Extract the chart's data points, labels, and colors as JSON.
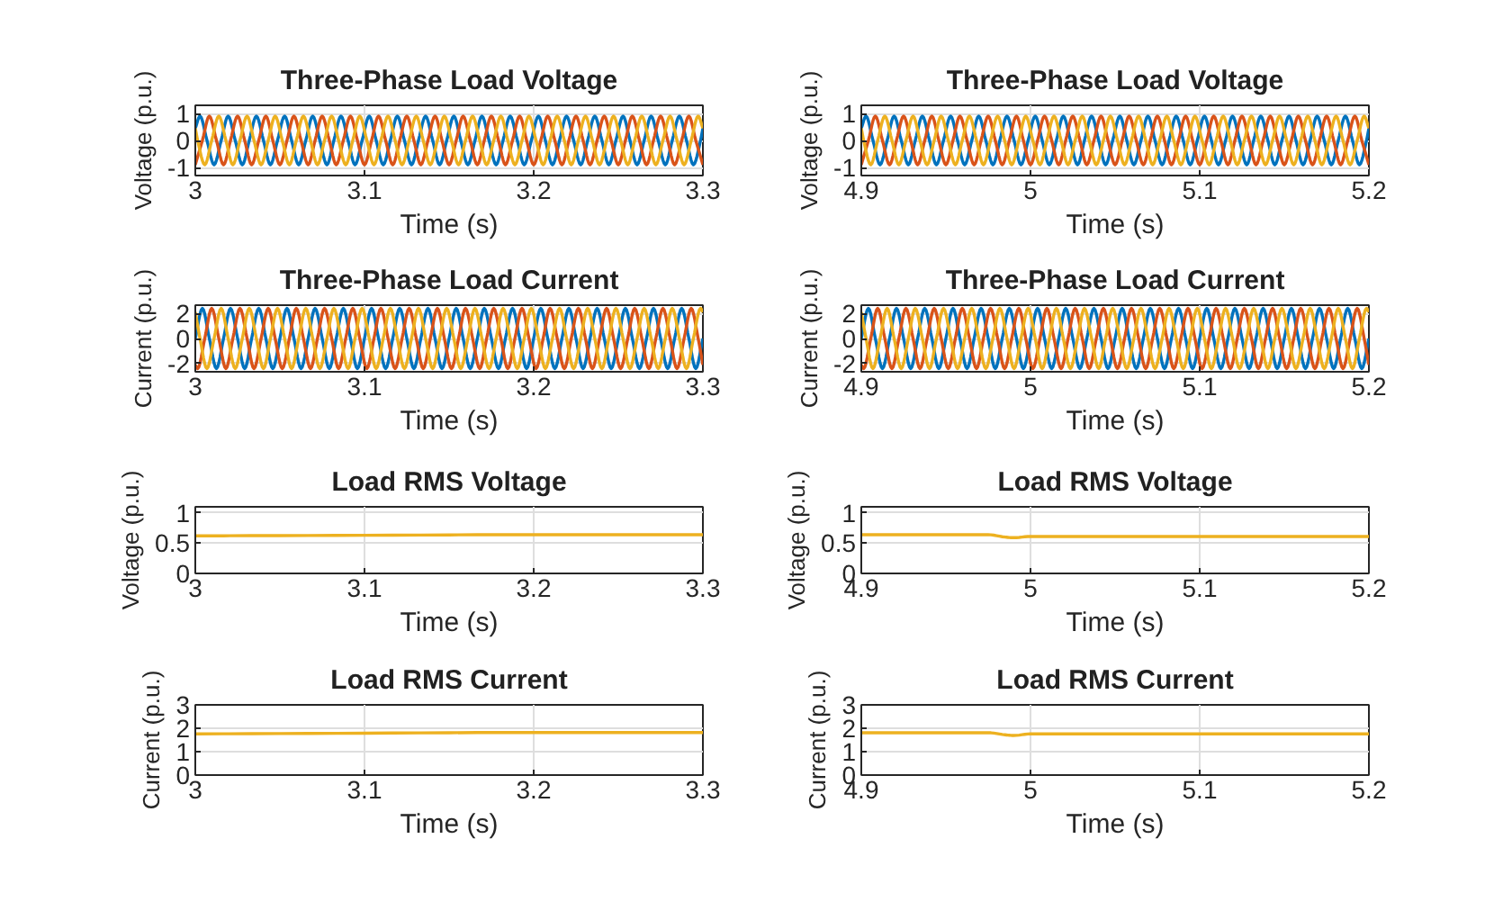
{
  "chart_data": [
    {
      "type": "line",
      "title": "Three-Phase Load Voltage",
      "xlabel": "Time (s)",
      "ylabel": "Voltage (p.u.)",
      "xlim": [
        3,
        3.3
      ],
      "xticks": [
        3,
        3.1,
        3.2,
        3.3
      ],
      "ylim": [
        -1.3,
        1.3
      ],
      "yticks": [
        -1,
        0,
        1
      ],
      "grid": true,
      "series": [
        {
          "color": "#0072bd",
          "x": [
            3,
            3.0028,
            3.0069,
            3.0111,
            3.0153,
            3.0194,
            3.0236,
            3.0278,
            3.0319,
            3.0361,
            3.0403,
            3.0444,
            3.0486,
            3.0528,
            3.0569,
            3.0611,
            3.0653,
            3.0694,
            3.0736,
            3.0778,
            3.0819,
            3.0861,
            3.0903,
            3.0944,
            3.0986,
            3.1028,
            3.1069,
            3.1111,
            3.1153,
            3.1194,
            3.1236,
            3.1278,
            3.1319,
            3.1361,
            3.1403,
            3.1444,
            3.1486,
            3.1528,
            3.1569,
            3.1611,
            3.1653,
            3.1694,
            3.1736,
            3.1778,
            3.1819,
            3.1861,
            3.1903,
            3.1944,
            3.1986,
            3.2028,
            3.2069,
            3.2111,
            3.2153,
            3.2194,
            3.2236,
            3.2278,
            3.2319,
            3.2361,
            3.2403,
            3.2444,
            3.2486,
            3.2528,
            3.2569,
            3.2611,
            3.2653,
            3.2694,
            3.2736,
            3.2778,
            3.2819,
            3.2861,
            3.2903,
            3.2944,
            3.2986,
            3.3
          ],
          "values": [
            0.45,
            0.9,
            0,
            -0.9,
            0,
            0.9,
            0,
            -0.9,
            0,
            0.9,
            0,
            -0.9,
            0,
            0.9,
            0,
            -0.9,
            0,
            0.9,
            0,
            -0.9,
            0,
            0.9,
            0,
            -0.9,
            0,
            0.9,
            0,
            -0.9,
            0,
            0.9,
            0,
            -0.9,
            0,
            0.9,
            0,
            -0.9,
            0,
            0.9,
            0,
            -0.9,
            0,
            0.9,
            0,
            -0.9,
            0,
            0.9,
            0,
            -0.9,
            0,
            0.9,
            0,
            -0.9,
            0,
            0.9,
            0,
            -0.9,
            0,
            0.9,
            0,
            -0.9,
            0,
            0.9,
            0,
            -0.9,
            0,
            0.9,
            0,
            -0.9,
            0,
            0.9,
            0,
            -0.9,
            0,
            0.45
          ]
        },
        {
          "color": "#d95319",
          "x": [
            3,
            3.0042,
            3.0083,
            3.0125,
            3.0167,
            3.0208,
            3.025,
            3.0292,
            3.0333,
            3.0375,
            3.0417,
            3.0458,
            3.05,
            3.0542,
            3.0583,
            3.0625,
            3.0667,
            3.0708,
            3.075,
            3.0792,
            3.0833,
            3.0875,
            3.0917,
            3.0958,
            3.1,
            3.1042,
            3.1083,
            3.1125,
            3.1167,
            3.1208,
            3.125,
            3.1292,
            3.1333,
            3.1375,
            3.1417,
            3.1458,
            3.15,
            3.1542,
            3.1583,
            3.1625,
            3.1667,
            3.1708,
            3.175,
            3.1792,
            3.1833,
            3.1875,
            3.1917,
            3.1958,
            3.2,
            3.2042,
            3.2083,
            3.2125,
            3.2167,
            3.2208,
            3.225,
            3.2292,
            3.2333,
            3.2375,
            3.2417,
            3.2458,
            3.25,
            3.2542,
            3.2583,
            3.2625,
            3.2667,
            3.2708,
            3.275,
            3.2792,
            3.2833,
            3.2875,
            3.2917,
            3.2958,
            3.3
          ],
          "values": [
            -0.9,
            0,
            0.9,
            0,
            -0.9,
            0,
            0.9,
            0,
            -0.9,
            0,
            0.9,
            0,
            -0.9,
            0,
            0.9,
            0,
            -0.9,
            0,
            0.9,
            0,
            -0.9,
            0,
            0.9,
            0,
            -0.9,
            0,
            0.9,
            0,
            -0.9,
            0,
            0.9,
            0,
            -0.9,
            0,
            0.9,
            0,
            -0.9,
            0,
            0.9,
            0,
            -0.9,
            0,
            0.9,
            0,
            -0.9,
            0,
            0.9,
            0,
            -0.9,
            0,
            0.9,
            0,
            -0.9,
            0,
            0.9,
            0,
            -0.9,
            0,
            0.9,
            0,
            -0.9,
            0,
            0.9,
            0,
            -0.9,
            0,
            0.9,
            0,
            -0.9,
            0,
            0.9,
            0,
            -0.9
          ]
        },
        {
          "color": "#edb120",
          "x": [
            3,
            3.0014,
            3.0056,
            3.0097,
            3.0139,
            3.0181,
            3.0222,
            3.0264,
            3.0306,
            3.0347,
            3.0389,
            3.0431,
            3.0472,
            3.0514,
            3.0556,
            3.0597,
            3.0639,
            3.0681,
            3.0722,
            3.0764,
            3.0806,
            3.0847,
            3.0889,
            3.0931,
            3.0972,
            3.1014,
            3.1056,
            3.1097,
            3.1139,
            3.1181,
            3.1222,
            3.1264,
            3.1306,
            3.1347,
            3.1389,
            3.1431,
            3.1472,
            3.1514,
            3.1556,
            3.1597,
            3.1639,
            3.1681,
            3.1722,
            3.1764,
            3.1806,
            3.1847,
            3.1889,
            3.1931,
            3.1972,
            3.2014,
            3.2056,
            3.2097,
            3.2139,
            3.2181,
            3.2222,
            3.2264,
            3.2306,
            3.2347,
            3.2389,
            3.2431,
            3.2472,
            3.2514,
            3.2556,
            3.2597,
            3.2639,
            3.2681,
            3.2722,
            3.2764,
            3.2806,
            3.2847,
            3.2889,
            3.2931,
            3.2972,
            3.3
          ],
          "values": [
            0.45,
            0,
            -0.9,
            0,
            0.9,
            0,
            -0.9,
            0,
            0.9,
            0,
            -0.9,
            0,
            0.9,
            0,
            -0.9,
            0,
            0.9,
            0,
            -0.9,
            0,
            0.9,
            0,
            -0.9,
            0,
            0.9,
            0,
            -0.9,
            0,
            0.9,
            0,
            -0.9,
            0,
            0.9,
            0,
            -0.9,
            0,
            0.9,
            0,
            -0.9,
            0,
            0.9,
            0,
            -0.9,
            0,
            0.9,
            0,
            -0.9,
            0,
            0.9,
            0,
            -0.9,
            0,
            0.9,
            0,
            -0.9,
            0,
            0.9,
            0,
            -0.9,
            0,
            0.9,
            0,
            -0.9,
            0,
            0.9,
            0,
            -0.9,
            0,
            0.9,
            0,
            -0.9,
            0,
            0.9,
            0.45
          ]
        }
      ]
    },
    {
      "type": "line",
      "title": "Three-Phase Load Voltage",
      "xlabel": "Time (s)",
      "ylabel": "Voltage (p.u.)",
      "xlim": [
        4.9,
        5.2
      ],
      "xticks": [
        4.9,
        5,
        5.1,
        5.2
      ],
      "ylim": [
        -1.3,
        1.3
      ],
      "yticks": [
        -1,
        0,
        1
      ],
      "grid": true,
      "series": [
        {
          "color": "#0072bd",
          "x": [
            4.9,
            4.9028,
            4.9069,
            4.9111,
            4.9153,
            4.9194,
            4.9236,
            4.9278,
            4.9319,
            4.9361,
            4.9403,
            4.9444,
            4.9486,
            4.9528,
            4.9569,
            4.9611,
            4.9653,
            4.9694,
            4.9736,
            4.9778,
            4.9819,
            4.9861,
            4.9903,
            4.9944,
            4.9986,
            5.0028,
            5.0069,
            5.0111,
            5.0153,
            5.0194,
            5.0236,
            5.0278,
            5.0319,
            5.0361,
            5.0403,
            5.0444,
            5.0486,
            5.0528,
            5.0569,
            5.0611,
            5.0653,
            5.0694,
            5.0736,
            5.0778,
            5.0819,
            5.0861,
            5.0903,
            5.0944,
            5.0986,
            5.1028,
            5.1069,
            5.1111,
            5.1153,
            5.1194,
            5.1236,
            5.1278,
            5.1319,
            5.1361,
            5.1403,
            5.1444,
            5.1486,
            5.1528,
            5.1569,
            5.1611,
            5.1653,
            5.1694,
            5.1736,
            5.1778,
            5.1819,
            5.1861,
            5.1903,
            5.1944,
            5.1986,
            5.2
          ],
          "values": [
            0.45,
            0.9,
            0,
            -0.9,
            0,
            0.9,
            0,
            -0.9,
            0,
            0.9,
            0,
            -0.9,
            0,
            0.9,
            0,
            -0.9,
            0,
            0.9,
            0,
            -0.9,
            0,
            0.9,
            0,
            -0.9,
            0,
            0.9,
            0,
            -0.9,
            0,
            0.9,
            0,
            -0.9,
            0,
            0.9,
            0,
            -0.9,
            0,
            0.9,
            0,
            -0.9,
            0,
            0.9,
            0,
            -0.9,
            0,
            0.9,
            0,
            -0.9,
            0,
            0.9,
            0,
            -0.9,
            0,
            0.9,
            0,
            -0.9,
            0,
            0.9,
            0,
            -0.9,
            0,
            0.9,
            0,
            -0.9,
            0,
            0.9,
            0,
            -0.9,
            0,
            0.9,
            0,
            -0.9,
            0,
            0.45
          ]
        },
        {
          "color": "#d95319",
          "x": [
            4.9,
            4.9042,
            4.9083,
            4.9125,
            4.9167,
            4.9208,
            4.925,
            4.9292,
            4.9333,
            4.9375,
            4.9417,
            4.9458,
            4.95,
            4.9542,
            4.9583,
            4.9625,
            4.9667,
            4.9708,
            4.975,
            4.9792,
            4.9833,
            4.9875,
            4.9917,
            4.9958,
            5,
            5.0042,
            5.0083,
            5.0125,
            5.0167,
            5.0208,
            5.025,
            5.0292,
            5.0333,
            5.0375,
            5.0417,
            5.0458,
            5.05,
            5.0542,
            5.0583,
            5.0625,
            5.0667,
            5.0708,
            5.075,
            5.0792,
            5.0833,
            5.0875,
            5.0917,
            5.0958,
            5.1,
            5.1042,
            5.1083,
            5.1125,
            5.1167,
            5.1208,
            5.125,
            5.1292,
            5.1333,
            5.1375,
            5.1417,
            5.1458,
            5.15,
            5.1542,
            5.1583,
            5.1625,
            5.1667,
            5.1708,
            5.175,
            5.1792,
            5.1833,
            5.1875,
            5.1917,
            5.1958,
            5.2
          ],
          "values": [
            -0.9,
            0,
            0.9,
            0,
            -0.9,
            0,
            0.9,
            0,
            -0.9,
            0,
            0.9,
            0,
            -0.9,
            0,
            0.9,
            0,
            -0.9,
            0,
            0.9,
            0,
            -0.9,
            0,
            0.9,
            0,
            -0.9,
            0,
            0.9,
            0,
            -0.9,
            0,
            0.9,
            0,
            -0.9,
            0,
            0.9,
            0,
            -0.9,
            0,
            0.9,
            0,
            -0.9,
            0,
            0.9,
            0,
            -0.9,
            0,
            0.9,
            0,
            -0.9,
            0,
            0.9,
            0,
            -0.9,
            0,
            0.9,
            0,
            -0.9,
            0,
            0.9,
            0,
            -0.9,
            0,
            0.9,
            0,
            -0.9,
            0,
            0.9,
            0,
            -0.9,
            0,
            0.9,
            0,
            -0.9
          ]
        },
        {
          "color": "#edb120",
          "x": [
            4.9,
            4.9014,
            4.9056,
            4.9097,
            4.9139,
            4.9181,
            4.9222,
            4.9264,
            4.9306,
            4.9347,
            4.9389,
            4.9431,
            4.9472,
            4.9514,
            4.9556,
            4.9597,
            4.9639,
            4.9681,
            4.9722,
            4.9764,
            4.9806,
            4.9847,
            4.9889,
            4.9931,
            4.9972,
            5.0014,
            5.0056,
            5.0097,
            5.0139,
            5.0181,
            5.0222,
            5.0264,
            5.0306,
            5.0347,
            5.0389,
            5.0431,
            5.0472,
            5.0514,
            5.0556,
            5.0597,
            5.0639,
            5.0681,
            5.0722,
            5.0764,
            5.0806,
            5.0847,
            5.0889,
            5.0931,
            5.0972,
            5.1014,
            5.1056,
            5.1097,
            5.1139,
            5.1181,
            5.1222,
            5.1264,
            5.1306,
            5.1347,
            5.1389,
            5.1431,
            5.1472,
            5.1514,
            5.1556,
            5.1597,
            5.1639,
            5.1681,
            5.1722,
            5.1764,
            5.1806,
            5.1847,
            5.1889,
            5.1931,
            5.1972,
            5.2
          ],
          "values": [
            0.45,
            0,
            -0.9,
            0,
            0.9,
            0,
            -0.9,
            0,
            0.9,
            0,
            -0.9,
            0,
            0.9,
            0,
            -0.9,
            0,
            0.9,
            0,
            -0.9,
            0,
            0.9,
            0,
            -0.9,
            0,
            0.9,
            0,
            -0.9,
            0,
            0.9,
            0,
            -0.9,
            0,
            0.9,
            0,
            -0.9,
            0,
            0.9,
            0,
            -0.9,
            0,
            0.9,
            0,
            -0.9,
            0,
            0.9,
            0,
            -0.9,
            0,
            0.9,
            0,
            -0.9,
            0,
            0.9,
            0,
            -0.9,
            0,
            0.9,
            0,
            -0.9,
            0,
            0.9,
            0,
            -0.9,
            0,
            0.9,
            0,
            -0.9,
            0,
            0.9,
            0,
            -0.9,
            0,
            0.9,
            0.45
          ]
        }
      ]
    },
    {
      "type": "line",
      "title": "Three-Phase Load Current",
      "xlabel": "Time (s)",
      "ylabel": "Current (p.u.)",
      "xlim": [
        3,
        3.3
      ],
      "xticks": [
        3,
        3.1,
        3.2,
        3.3
      ],
      "ylim": [
        -2.65,
        2.65
      ],
      "yticks": [
        -2,
        0,
        2
      ],
      "grid": true,
      "series": [
        {
          "color": "#0072bd",
          "x": [
            3,
            3.0042,
            3.0083,
            3.0125,
            3.0167,
            3.0208,
            3.025,
            3.0292,
            3.0333,
            3.0375,
            3.0417,
            3.0458,
            3.05,
            3.0542,
            3.0583,
            3.0625,
            3.0667,
            3.0708,
            3.075,
            3.0792,
            3.0833,
            3.0875,
            3.0917,
            3.0958,
            3.1,
            3.1042,
            3.1083,
            3.1125,
            3.1167,
            3.1208,
            3.125,
            3.1292,
            3.1333,
            3.1375,
            3.1417,
            3.1458,
            3.15,
            3.1542,
            3.1583,
            3.1625,
            3.1667,
            3.1708,
            3.175,
            3.1792,
            3.1833,
            3.1875,
            3.1917,
            3.1958,
            3.2,
            3.2042,
            3.2083,
            3.2125,
            3.2167,
            3.2208,
            3.225,
            3.2292,
            3.2333,
            3.2375,
            3.2417,
            3.2458,
            3.25,
            3.2542,
            3.2583,
            3.2625,
            3.2667,
            3.2708,
            3.275,
            3.2792,
            3.2833,
            3.2875,
            3.2917,
            3.2958,
            3.3
          ],
          "values": [
            0,
            2.4,
            0,
            -2.4,
            0,
            2.4,
            0,
            -2.4,
            0,
            2.4,
            0,
            -2.4,
            0,
            2.4,
            0,
            -2.4,
            0,
            2.4,
            0,
            -2.4,
            0,
            2.4,
            0,
            -2.4,
            0,
            2.4,
            0,
            -2.4,
            0,
            2.4,
            0,
            -2.4,
            0,
            2.4,
            0,
            -2.4,
            0,
            2.4,
            0,
            -2.4,
            0,
            2.4,
            0,
            -2.4,
            0,
            2.4,
            0,
            -2.4,
            0,
            2.4,
            0,
            -2.4,
            0,
            2.4,
            0,
            -2.4,
            0,
            2.4,
            0,
            -2.4,
            0,
            2.4,
            0,
            -2.4,
            0,
            2.4,
            0,
            -2.4,
            0,
            2.4,
            0,
            -2.4,
            0
          ]
        },
        {
          "color": "#d95319",
          "x": [
            3,
            3.0014,
            3.0056,
            3.0097,
            3.0139,
            3.0181,
            3.0222,
            3.0264,
            3.0306,
            3.0347,
            3.0389,
            3.0431,
            3.0472,
            3.0514,
            3.0556,
            3.0597,
            3.0639,
            3.0681,
            3.0722,
            3.0764,
            3.0806,
            3.0847,
            3.0889,
            3.0931,
            3.0972,
            3.1014,
            3.1056,
            3.1097,
            3.1139,
            3.1181,
            3.1222,
            3.1264,
            3.1306,
            3.1347,
            3.1389,
            3.1431,
            3.1472,
            3.1514,
            3.1556,
            3.1597,
            3.1639,
            3.1681,
            3.1722,
            3.1764,
            3.1806,
            3.1847,
            3.1889,
            3.1931,
            3.1972,
            3.2014,
            3.2056,
            3.2097,
            3.2139,
            3.2181,
            3.2222,
            3.2264,
            3.2306,
            3.2347,
            3.2389,
            3.2431,
            3.2472,
            3.2514,
            3.2556,
            3.2597,
            3.2639,
            3.2681,
            3.2722,
            3.2764,
            3.2806,
            3.2847,
            3.2889,
            3.2931,
            3.2972,
            3.3
          ],
          "values": [
            -2.1,
            -2.4,
            0,
            2.4,
            0,
            -2.4,
            0,
            2.4,
            0,
            -2.4,
            0,
            2.4,
            0,
            -2.4,
            0,
            2.4,
            0,
            -2.4,
            0,
            2.4,
            0,
            -2.4,
            0,
            2.4,
            0,
            -2.4,
            0,
            2.4,
            0,
            -2.4,
            0,
            2.4,
            0,
            -2.4,
            0,
            2.4,
            0,
            -2.4,
            0,
            2.4,
            0,
            -2.4,
            0,
            2.4,
            0,
            -2.4,
            0,
            2.4,
            0,
            -2.4,
            0,
            2.4,
            0,
            -2.4,
            0,
            2.4,
            0,
            -2.4,
            0,
            2.4,
            0,
            -2.4,
            0,
            2.4,
            0,
            -2.4,
            0,
            2.4,
            0,
            -2.4,
            0,
            2.4,
            0,
            -2.1
          ]
        },
        {
          "color": "#edb120",
          "x": [
            3,
            3.0028,
            3.0069,
            3.0111,
            3.0153,
            3.0194,
            3.0236,
            3.0278,
            3.0319,
            3.0361,
            3.0403,
            3.0444,
            3.0486,
            3.0528,
            3.0569,
            3.0611,
            3.0653,
            3.0694,
            3.0736,
            3.0778,
            3.0819,
            3.0861,
            3.0903,
            3.0944,
            3.0986,
            3.1028,
            3.1069,
            3.1111,
            3.1153,
            3.1194,
            3.1236,
            3.1278,
            3.1319,
            3.1361,
            3.1403,
            3.1444,
            3.1486,
            3.1528,
            3.1569,
            3.1611,
            3.1653,
            3.1694,
            3.1736,
            3.1778,
            3.1819,
            3.1861,
            3.1903,
            3.1944,
            3.1986,
            3.2028,
            3.2069,
            3.2111,
            3.2153,
            3.2194,
            3.2236,
            3.2278,
            3.2319,
            3.2361,
            3.2403,
            3.2444,
            3.2486,
            3.2528,
            3.2569,
            3.2611,
            3.2653,
            3.2694,
            3.2736,
            3.2778,
            3.2819,
            3.2861,
            3.2903,
            3.2944,
            3.2986,
            3.3
          ],
          "values": [
            2.1,
            0,
            -2.4,
            0,
            2.4,
            0,
            -2.4,
            0,
            2.4,
            0,
            -2.4,
            0,
            2.4,
            0,
            -2.4,
            0,
            2.4,
            0,
            -2.4,
            0,
            2.4,
            0,
            -2.4,
            0,
            2.4,
            0,
            -2.4,
            0,
            2.4,
            0,
            -2.4,
            0,
            2.4,
            0,
            -2.4,
            0,
            2.4,
            0,
            -2.4,
            0,
            2.4,
            0,
            -2.4,
            0,
            2.4,
            0,
            -2.4,
            0,
            2.4,
            0,
            -2.4,
            0,
            2.4,
            0,
            -2.4,
            0,
            2.4,
            0,
            -2.4,
            0,
            2.4,
            0,
            -2.4,
            0,
            2.4,
            0,
            -2.4,
            0,
            2.4,
            0,
            -2.4,
            0,
            2.4,
            2.1
          ]
        }
      ]
    },
    {
      "type": "line",
      "title": "Three-Phase Load Current",
      "xlabel": "Time (s)",
      "ylabel": "Current (p.u.)",
      "xlim": [
        4.9,
        5.2
      ],
      "xticks": [
        4.9,
        5,
        5.1,
        5.2
      ],
      "ylim": [
        -2.65,
        2.65
      ],
      "yticks": [
        -2,
        0,
        2
      ],
      "grid": true,
      "series": [
        {
          "color": "#0072bd",
          "x": [
            4.9,
            4.9042,
            4.9083,
            4.9125,
            4.9167,
            4.9208,
            4.925,
            4.9292,
            4.9333,
            4.9375,
            4.9417,
            4.9458,
            4.95,
            4.9542,
            4.9583,
            4.9625,
            4.9667,
            4.9708,
            4.975,
            4.9792,
            4.9833,
            4.9875,
            4.9917,
            4.9958,
            5,
            5.0042,
            5.0083,
            5.0125,
            5.0167,
            5.0208,
            5.025,
            5.0292,
            5.0333,
            5.0375,
            5.0417,
            5.0458,
            5.05,
            5.0542,
            5.0583,
            5.0625,
            5.0667,
            5.0708,
            5.075,
            5.0792,
            5.0833,
            5.0875,
            5.0917,
            5.0958,
            5.1,
            5.1042,
            5.1083,
            5.1125,
            5.1167,
            5.1208,
            5.125,
            5.1292,
            5.1333,
            5.1375,
            5.1417,
            5.1458,
            5.15,
            5.1542,
            5.1583,
            5.1625,
            5.1667,
            5.1708,
            5.175,
            5.1792,
            5.1833,
            5.1875,
            5.1917,
            5.1958,
            5.2
          ],
          "values": [
            0,
            2.4,
            0,
            -2.4,
            0,
            2.4,
            0,
            -2.4,
            0,
            2.4,
            0,
            -2.4,
            0,
            2.4,
            0,
            -2.4,
            0,
            2.4,
            0,
            -2.4,
            0,
            2.4,
            0,
            -2.4,
            0,
            2.4,
            0,
            -2.4,
            0,
            2.4,
            0,
            -2.4,
            0,
            2.4,
            0,
            -2.4,
            0,
            2.4,
            0,
            -2.4,
            0,
            2.4,
            0,
            -2.4,
            0,
            2.4,
            0,
            -2.4,
            0,
            2.4,
            0,
            -2.4,
            0,
            2.4,
            0,
            -2.4,
            0,
            2.4,
            0,
            -2.4,
            0,
            2.4,
            0,
            -2.4,
            0,
            2.4,
            0,
            -2.4,
            0,
            2.4,
            0,
            -2.4,
            0
          ]
        },
        {
          "color": "#d95319",
          "x": [
            4.9,
            4.9014,
            4.9056,
            4.9097,
            4.9139,
            4.9181,
            4.9222,
            4.9264,
            4.9306,
            4.9347,
            4.9389,
            4.9431,
            4.9472,
            4.9514,
            4.9556,
            4.9597,
            4.9639,
            4.9681,
            4.9722,
            4.9764,
            4.9806,
            4.9847,
            4.9889,
            4.9931,
            4.9972,
            5.0014,
            5.0056,
            5.0097,
            5.0139,
            5.0181,
            5.0222,
            5.0264,
            5.0306,
            5.0347,
            5.0389,
            5.0431,
            5.0472,
            5.0514,
            5.0556,
            5.0597,
            5.0639,
            5.0681,
            5.0722,
            5.0764,
            5.0806,
            5.0847,
            5.0889,
            5.0931,
            5.0972,
            5.1014,
            5.1056,
            5.1097,
            5.1139,
            5.1181,
            5.1222,
            5.1264,
            5.1306,
            5.1347,
            5.1389,
            5.1431,
            5.1472,
            5.1514,
            5.1556,
            5.1597,
            5.1639,
            5.1681,
            5.1722,
            5.1764,
            5.1806,
            5.1847,
            5.1889,
            5.1931,
            5.1972,
            5.2
          ],
          "values": [
            -2.1,
            -2.4,
            0,
            2.4,
            0,
            -2.4,
            0,
            2.4,
            0,
            -2.4,
            0,
            2.4,
            0,
            -2.4,
            0,
            2.4,
            0,
            -2.4,
            0,
            2.4,
            0,
            -2.4,
            0,
            2.4,
            0,
            -2.4,
            0,
            2.4,
            0,
            -2.4,
            0,
            2.4,
            0,
            -2.4,
            0,
            2.4,
            0,
            -2.4,
            0,
            2.4,
            0,
            -2.4,
            0,
            2.4,
            0,
            -2.4,
            0,
            2.4,
            0,
            -2.4,
            0,
            2.4,
            0,
            -2.4,
            0,
            2.4,
            0,
            -2.4,
            0,
            2.4,
            0,
            -2.4,
            0,
            2.4,
            0,
            -2.4,
            0,
            2.4,
            0,
            -2.4,
            0,
            2.4,
            0,
            -2.1
          ]
        },
        {
          "color": "#edb120",
          "x": [
            4.9,
            4.9028,
            4.9069,
            4.9111,
            4.9153,
            4.9194,
            4.9236,
            4.9278,
            4.9319,
            4.9361,
            4.9403,
            4.9444,
            4.9486,
            4.9528,
            4.9569,
            4.9611,
            4.9653,
            4.9694,
            4.9736,
            4.9778,
            4.9819,
            4.9861,
            4.9903,
            4.9944,
            4.9986,
            5.0028,
            5.0069,
            5.0111,
            5.0153,
            5.0194,
            5.0236,
            5.0278,
            5.0319,
            5.0361,
            5.0403,
            5.0444,
            5.0486,
            5.0528,
            5.0569,
            5.0611,
            5.0653,
            5.0694,
            5.0736,
            5.0778,
            5.0819,
            5.0861,
            5.0903,
            5.0944,
            5.0986,
            5.1028,
            5.1069,
            5.1111,
            5.1153,
            5.1194,
            5.1236,
            5.1278,
            5.1319,
            5.1361,
            5.1403,
            5.1444,
            5.1486,
            5.1528,
            5.1569,
            5.1611,
            5.1653,
            5.1694,
            5.1736,
            5.1778,
            5.1819,
            5.1861,
            5.1903,
            5.1944,
            5.1986,
            5.2
          ],
          "values": [
            2.1,
            0,
            -2.4,
            0,
            2.4,
            0,
            -2.4,
            0,
            2.4,
            0,
            -2.4,
            0,
            2.4,
            0,
            -2.4,
            0,
            2.4,
            0,
            -2.4,
            0,
            2.4,
            0,
            -2.4,
            0,
            2.4,
            0,
            -2.4,
            0,
            2.4,
            0,
            -2.4,
            0,
            2.4,
            0,
            -2.4,
            0,
            2.4,
            0,
            -2.4,
            0,
            2.4,
            0,
            -2.4,
            0,
            2.4,
            0,
            -2.4,
            0,
            2.4,
            0,
            -2.4,
            0,
            2.4,
            0,
            -2.4,
            0,
            2.4,
            0,
            -2.4,
            0,
            2.4,
            0,
            -2.4,
            0,
            2.4,
            0,
            -2.4,
            0,
            2.4,
            0,
            -2.4,
            0,
            2.4,
            2.1
          ]
        }
      ]
    },
    {
      "type": "line",
      "title": "Load RMS Voltage",
      "xlabel": "Time (s)",
      "ylabel": "Voltage (p.u.)",
      "xlim": [
        3,
        3.3
      ],
      "xticks": [
        3,
        3.1,
        3.2,
        3.3
      ],
      "ylim": [
        0,
        1.1
      ],
      "yticks": [
        0,
        0.5,
        1
      ],
      "grid": true,
      "series": [
        {
          "color": "#edb120",
          "x": [
            3,
            3.1,
            3.2,
            3.3
          ],
          "values": [
            0.62,
            0.63,
            0.64,
            0.64
          ]
        }
      ]
    },
    {
      "type": "line",
      "title": "Load RMS Voltage",
      "xlabel": "Time (s)",
      "ylabel": "Voltage (p.u.)",
      "xlim": [
        4.9,
        5.2
      ],
      "xticks": [
        4.9,
        5,
        5.1,
        5.2
      ],
      "ylim": [
        0,
        1.1
      ],
      "yticks": [
        0,
        0.5,
        1
      ],
      "grid": true,
      "series": [
        {
          "color": "#edb120",
          "x": [
            4.9,
            4.975,
            4.985,
            4.99,
            5,
            5.2
          ],
          "values": [
            0.64,
            0.64,
            0.6,
            0.59,
            0.61,
            0.61
          ]
        }
      ]
    },
    {
      "type": "line",
      "title": "Load RMS Current",
      "xlabel": "Time (s)",
      "ylabel": "Current (p.u.)",
      "xlim": [
        3,
        3.3
      ],
      "xticks": [
        3,
        3.1,
        3.2,
        3.3
      ],
      "ylim": [
        0,
        3
      ],
      "yticks": [
        0,
        1,
        2,
        3
      ],
      "grid": true,
      "series": [
        {
          "color": "#edb120",
          "x": [
            3,
            3.1,
            3.2,
            3.3
          ],
          "values": [
            1.76,
            1.79,
            1.82,
            1.82
          ]
        }
      ]
    },
    {
      "type": "line",
      "title": "Load RMS Current",
      "xlabel": "Time (s)",
      "ylabel": "Current (p.u.)",
      "xlim": [
        4.9,
        5.2
      ],
      "xticks": [
        4.9,
        5,
        5.1,
        5.2
      ],
      "ylim": [
        0,
        3
      ],
      "yticks": [
        0,
        1,
        2,
        3
      ],
      "grid": true,
      "series": [
        {
          "color": "#edb120",
          "x": [
            4.9,
            4.975,
            4.985,
            4.99,
            5,
            5.2
          ],
          "values": [
            1.81,
            1.81,
            1.72,
            1.69,
            1.76,
            1.76
          ]
        }
      ]
    }
  ]
}
